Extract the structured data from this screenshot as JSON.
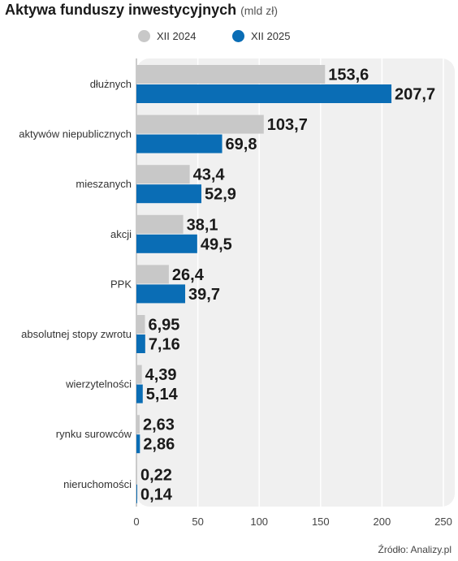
{
  "title": "Aktywa funduszy inwestycyjnych",
  "unit": "(mld zł)",
  "source": "Źródło: Analizy.pl",
  "colors": {
    "series_2024": "#c8c8c8",
    "series_2025": "#0a6db5",
    "panel": "#f0f0f0"
  },
  "chart_data": {
    "type": "bar",
    "orientation": "horizontal",
    "categories": [
      "dłużnych",
      "aktywów niepublicznych",
      "mieszanych",
      "akcji",
      "PPK",
      "absolutnej stopy zwrotu",
      "wierzytelności",
      "rynku surowców",
      "nieruchomości"
    ],
    "series": [
      {
        "name": "XII 2024",
        "values": [
          153.6,
          103.7,
          43.4,
          38.1,
          26.4,
          6.95,
          4.39,
          2.63,
          0.22
        ],
        "labels": [
          "153,6",
          "103,7",
          "43,4",
          "38,1",
          "26,4",
          "6,95",
          "4,39",
          "2,63",
          "0,22"
        ]
      },
      {
        "name": "XII 2025",
        "values": [
          207.7,
          69.8,
          52.9,
          49.5,
          39.7,
          7.16,
          5.14,
          2.86,
          0.14
        ],
        "labels": [
          "207,7",
          "69,8",
          "52,9",
          "49,5",
          "39,7",
          "7,16",
          "5,14",
          "2,86",
          "0,14"
        ]
      }
    ],
    "xlim": [
      0,
      250
    ],
    "xticks": [
      0,
      50,
      100,
      150,
      200,
      250
    ],
    "grid": true,
    "legend": "top"
  }
}
